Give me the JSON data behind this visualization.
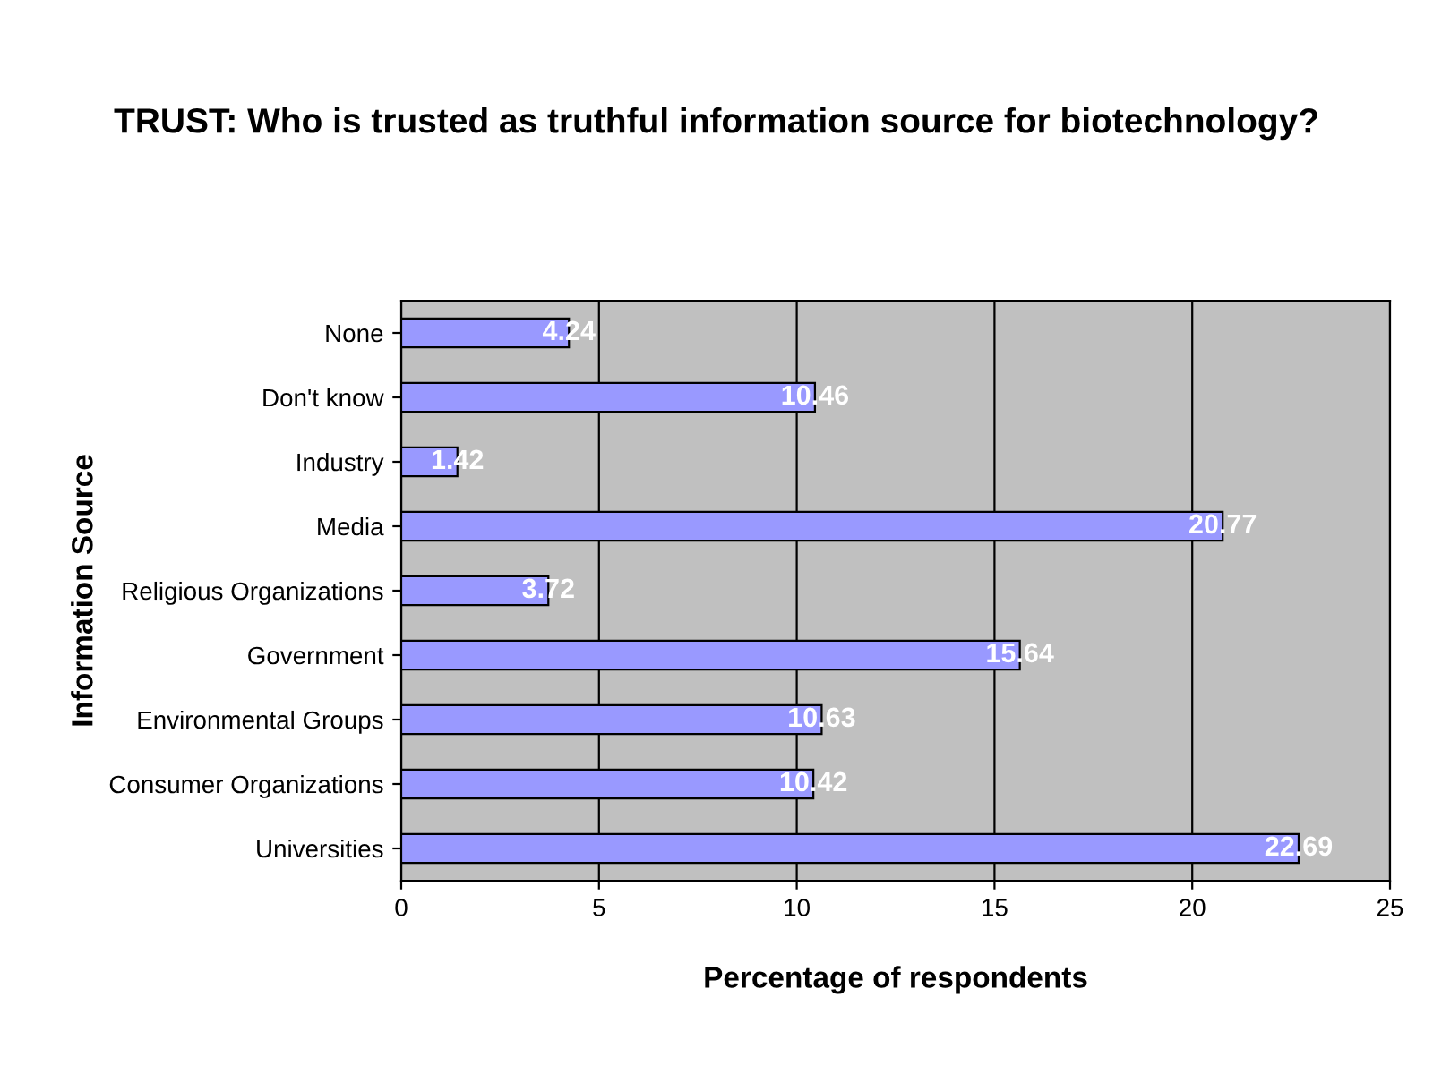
{
  "chart_data": {
    "type": "bar",
    "orientation": "horizontal",
    "title": "TRUST: Who is trusted as truthful information source for biotechnology?",
    "xlabel": "Percentage of respondents",
    "ylabel": "Information Source",
    "categories": [
      "None",
      "Don't know",
      "Industry",
      "Media",
      "Religious Organizations",
      "Government",
      "Environmental Groups",
      "Consumer Organizations",
      "Universities"
    ],
    "values": [
      4.24,
      10.46,
      1.42,
      20.77,
      3.72,
      15.64,
      10.63,
      10.42,
      22.69
    ],
    "color": "#9999ff",
    "data_labels": true,
    "xlim": [
      0,
      25
    ],
    "xticks": [
      0,
      5,
      10,
      15,
      20,
      25
    ],
    "grid": "x"
  }
}
